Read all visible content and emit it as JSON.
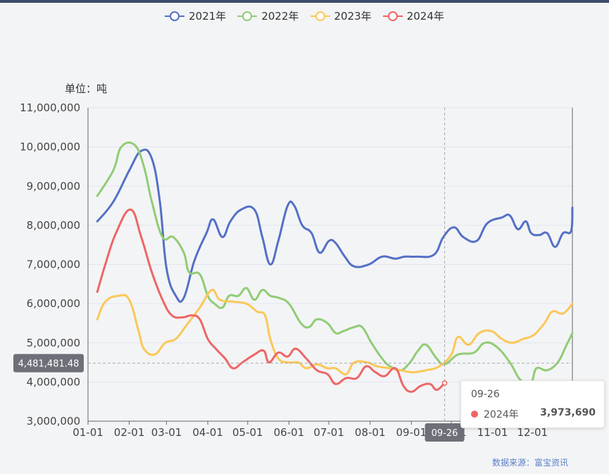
{
  "legend": [
    "2021年",
    "2022年",
    "2023年",
    "2024年"
  ],
  "source": "数据来源：富宝资讯",
  "tooltip": {
    "date": "09-26",
    "series": "2024年",
    "value": "3,973,690"
  },
  "crosshair": {
    "x_label": "09-26",
    "y_label": "4,481,481.48"
  },
  "chart_data": {
    "type": "line",
    "unit_label": "单位：吨",
    "x_axis": {
      "min_day": 1,
      "max_day": 365,
      "tick_labels": [
        "01-01",
        "02-01",
        "03-01",
        "04-01",
        "05-01",
        "06-01",
        "07-01",
        "08-01",
        "09-01",
        "10-01",
        "11-01",
        "12-01"
      ]
    },
    "y_axis": {
      "min": 3000000,
      "max": 11000000,
      "interval": 1000000
    },
    "ylim": [
      3000000,
      11000000
    ],
    "grid": true,
    "legend_position": "top-center",
    "crosshair": {
      "x": "09-26",
      "y": 4481481.48
    },
    "series": [
      {
        "name": "2021年",
        "color": "#5470c6",
        "points": [
          [
            "01-08",
            8100000
          ],
          [
            "01-20",
            8600000
          ],
          [
            "02-01",
            9400000
          ],
          [
            "02-10",
            9900000
          ],
          [
            "02-18",
            9700000
          ],
          [
            "02-24",
            8600000
          ],
          [
            "03-01",
            6900000
          ],
          [
            "03-08",
            6200000
          ],
          [
            "03-14",
            6150000
          ],
          [
            "03-22",
            7100000
          ],
          [
            "03-31",
            7800000
          ],
          [
            "04-05",
            8150000
          ],
          [
            "04-12",
            7700000
          ],
          [
            "04-18",
            8100000
          ],
          [
            "04-26",
            8400000
          ],
          [
            "05-06",
            8400000
          ],
          [
            "05-12",
            7700000
          ],
          [
            "05-18",
            7000000
          ],
          [
            "05-24",
            7600000
          ],
          [
            "05-31",
            8500000
          ],
          [
            "06-05",
            8500000
          ],
          [
            "06-11",
            8000000
          ],
          [
            "06-18",
            7800000
          ],
          [
            "06-24",
            7300000
          ],
          [
            "07-01",
            7600000
          ],
          [
            "07-06",
            7550000
          ],
          [
            "07-13",
            7200000
          ],
          [
            "07-20",
            6950000
          ],
          [
            "07-31",
            7000000
          ],
          [
            "08-10",
            7200000
          ],
          [
            "08-20",
            7150000
          ],
          [
            "08-27",
            7200000
          ],
          [
            "09-05",
            7200000
          ],
          [
            "09-18",
            7250000
          ],
          [
            "09-25",
            7700000
          ],
          [
            "10-03",
            7950000
          ],
          [
            "10-10",
            7700000
          ],
          [
            "10-20",
            7600000
          ],
          [
            "10-28",
            8050000
          ],
          [
            "11-08",
            8200000
          ],
          [
            "11-14",
            8250000
          ],
          [
            "11-20",
            7900000
          ],
          [
            "11-26",
            8100000
          ],
          [
            "11-30",
            7800000
          ],
          [
            "12-06",
            7750000
          ],
          [
            "12-12",
            7800000
          ],
          [
            "12-18",
            7450000
          ],
          [
            "12-24",
            7800000
          ],
          [
            "12-30",
            7850000
          ],
          [
            "12-31",
            8450000
          ]
        ]
      },
      {
        "name": "2022年",
        "color": "#91cc75",
        "points": [
          [
            "01-08",
            8750000
          ],
          [
            "01-20",
            9400000
          ],
          [
            "01-26",
            10000000
          ],
          [
            "02-05",
            10050000
          ],
          [
            "02-12",
            9500000
          ],
          [
            "02-18",
            8600000
          ],
          [
            "02-26",
            7700000
          ],
          [
            "03-06",
            7700000
          ],
          [
            "03-14",
            7300000
          ],
          [
            "03-18",
            6800000
          ],
          [
            "03-26",
            6750000
          ],
          [
            "04-01",
            6200000
          ],
          [
            "04-06",
            6000000
          ],
          [
            "04-12",
            5900000
          ],
          [
            "04-17",
            6200000
          ],
          [
            "04-24",
            6200000
          ],
          [
            "04-30",
            6400000
          ],
          [
            "05-06",
            6100000
          ],
          [
            "05-12",
            6350000
          ],
          [
            "05-18",
            6200000
          ],
          [
            "05-24",
            6150000
          ],
          [
            "06-01",
            6000000
          ],
          [
            "06-10",
            5500000
          ],
          [
            "06-16",
            5400000
          ],
          [
            "06-22",
            5600000
          ],
          [
            "06-30",
            5500000
          ],
          [
            "07-06",
            5250000
          ],
          [
            "07-12",
            5300000
          ],
          [
            "07-20",
            5400000
          ],
          [
            "07-26",
            5400000
          ],
          [
            "08-02",
            5000000
          ],
          [
            "08-10",
            4600000
          ],
          [
            "08-16",
            4400000
          ],
          [
            "08-24",
            4300000
          ],
          [
            "08-31",
            4500000
          ],
          [
            "09-06",
            4800000
          ],
          [
            "09-12",
            4950000
          ],
          [
            "09-20",
            4600000
          ],
          [
            "09-26",
            4450000
          ],
          [
            "10-06",
            4700000
          ],
          [
            "10-18",
            4750000
          ],
          [
            "10-26",
            5000000
          ],
          [
            "11-04",
            4900000
          ],
          [
            "11-14",
            4500000
          ],
          [
            "11-22",
            4050000
          ],
          [
            "11-30",
            4000000
          ],
          [
            "12-04",
            4350000
          ],
          [
            "12-12",
            4300000
          ],
          [
            "12-20",
            4500000
          ],
          [
            "12-26",
            4900000
          ],
          [
            "12-31",
            5250000
          ]
        ]
      },
      {
        "name": "2023年",
        "color": "#fac858",
        "points": [
          [
            "01-08",
            5600000
          ],
          [
            "01-14",
            6050000
          ],
          [
            "01-24",
            6200000
          ],
          [
            "02-01",
            6100000
          ],
          [
            "02-08",
            5300000
          ],
          [
            "02-12",
            4850000
          ],
          [
            "02-20",
            4700000
          ],
          [
            "02-28",
            5000000
          ],
          [
            "03-08",
            5100000
          ],
          [
            "03-16",
            5450000
          ],
          [
            "03-26",
            5900000
          ],
          [
            "04-04",
            6350000
          ],
          [
            "04-10",
            6100000
          ],
          [
            "04-20",
            6050000
          ],
          [
            "04-30",
            6000000
          ],
          [
            "05-08",
            5800000
          ],
          [
            "05-14",
            5700000
          ],
          [
            "05-18",
            5100000
          ],
          [
            "05-24",
            4600000
          ],
          [
            "06-01",
            4500000
          ],
          [
            "06-08",
            4500000
          ],
          [
            "06-14",
            4350000
          ],
          [
            "06-22",
            4450000
          ],
          [
            "06-30",
            4350000
          ],
          [
            "07-06",
            4350000
          ],
          [
            "07-14",
            4200000
          ],
          [
            "07-20",
            4500000
          ],
          [
            "07-30",
            4500000
          ],
          [
            "08-06",
            4400000
          ],
          [
            "08-16",
            4350000
          ],
          [
            "08-24",
            4300000
          ],
          [
            "09-02",
            4250000
          ],
          [
            "09-12",
            4300000
          ],
          [
            "09-22",
            4400000
          ],
          [
            "10-01",
            4700000
          ],
          [
            "10-06",
            5150000
          ],
          [
            "10-14",
            4950000
          ],
          [
            "10-22",
            5250000
          ],
          [
            "10-31",
            5300000
          ],
          [
            "11-08",
            5100000
          ],
          [
            "11-16",
            5000000
          ],
          [
            "11-24",
            5100000
          ],
          [
            "12-02",
            5200000
          ],
          [
            "12-10",
            5500000
          ],
          [
            "12-16",
            5800000
          ],
          [
            "12-24",
            5750000
          ],
          [
            "12-31",
            6000000
          ]
        ]
      },
      {
        "name": "2024年",
        "color": "#ee6666",
        "points": [
          [
            "01-08",
            6300000
          ],
          [
            "01-14",
            7000000
          ],
          [
            "01-22",
            7800000
          ],
          [
            "02-02",
            8400000
          ],
          [
            "02-10",
            7700000
          ],
          [
            "02-18",
            6800000
          ],
          [
            "02-26",
            6100000
          ],
          [
            "03-05",
            5700000
          ],
          [
            "03-13",
            5650000
          ],
          [
            "03-20",
            5700000
          ],
          [
            "03-26",
            5600000
          ],
          [
            "04-01",
            5100000
          ],
          [
            "04-07",
            4850000
          ],
          [
            "04-14",
            4600000
          ],
          [
            "04-20",
            4350000
          ],
          [
            "04-27",
            4500000
          ],
          [
            "05-06",
            4700000
          ],
          [
            "05-13",
            4800000
          ],
          [
            "05-17",
            4500000
          ],
          [
            "05-24",
            4750000
          ],
          [
            "05-31",
            4650000
          ],
          [
            "06-06",
            4850000
          ],
          [
            "06-14",
            4600000
          ],
          [
            "06-22",
            4300000
          ],
          [
            "06-30",
            4200000
          ],
          [
            "07-06",
            3950000
          ],
          [
            "07-14",
            4100000
          ],
          [
            "07-22",
            4100000
          ],
          [
            "07-29",
            4400000
          ],
          [
            "08-05",
            4250000
          ],
          [
            "08-12",
            4150000
          ],
          [
            "08-20",
            4350000
          ],
          [
            "08-26",
            3900000
          ],
          [
            "09-01",
            3750000
          ],
          [
            "09-08",
            3900000
          ],
          [
            "09-15",
            3950000
          ],
          [
            "09-20",
            3800000
          ],
          [
            "09-26",
            3973690
          ]
        ]
      }
    ]
  }
}
